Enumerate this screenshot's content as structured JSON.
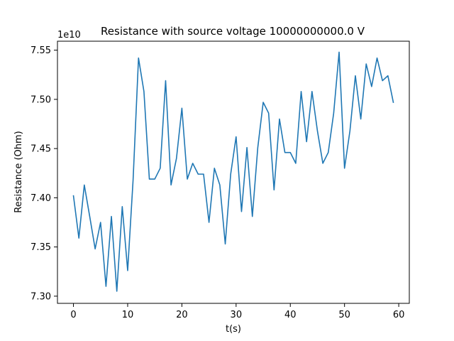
{
  "chart_data": {
    "type": "line",
    "title": "Resistance with source voltage 10000000000.0 V",
    "xlabel": "t(s)",
    "ylabel": "Resistance (Ohm)",
    "y_offset_label": "1e10",
    "xlim": [
      -2.95,
      61.95
    ],
    "ylim": [
      7.2927,
      7.5591
    ],
    "x_ticks": [
      0,
      10,
      20,
      30,
      40,
      50,
      60
    ],
    "x_tick_labels": [
      "0",
      "10",
      "20",
      "30",
      "40",
      "50",
      "60"
    ],
    "y_ticks": [
      7.3,
      7.35,
      7.4,
      7.45,
      7.5,
      7.55
    ],
    "y_tick_labels": [
      "7.30",
      "7.35",
      "7.40",
      "7.45",
      "7.50",
      "7.55"
    ],
    "grid": false,
    "line_color": "#1f77b4",
    "series": [
      {
        "x": [
          0,
          1,
          2,
          3,
          4,
          5,
          6,
          7,
          8,
          9,
          10,
          11,
          12,
          13,
          14,
          15,
          16,
          17,
          18,
          19,
          20,
          21,
          22,
          23,
          24,
          25,
          26,
          27,
          28,
          29,
          30,
          31,
          32,
          33,
          34,
          35,
          36,
          37,
          38,
          39,
          40,
          41,
          42,
          43,
          44,
          45,
          46,
          47,
          48,
          49,
          50,
          51,
          52,
          53,
          54,
          55,
          56,
          57,
          58,
          59
        ],
        "values": [
          7.402,
          7.359,
          7.413,
          7.381,
          7.348,
          7.375,
          7.31,
          7.381,
          7.305,
          7.391,
          7.326,
          7.418,
          7.542,
          7.508,
          7.419,
          7.419,
          7.43,
          7.519,
          7.413,
          7.44,
          7.491,
          7.419,
          7.435,
          7.424,
          7.424,
          7.375,
          7.43,
          7.413,
          7.353,
          7.424,
          7.462,
          7.386,
          7.451,
          7.381,
          7.451,
          7.497,
          7.486,
          7.408,
          7.48,
          7.446,
          7.446,
          7.435,
          7.508,
          7.457,
          7.508,
          7.468,
          7.435,
          7.446,
          7.486,
          7.548,
          7.43,
          7.468,
          7.524,
          7.48,
          7.536,
          7.513,
          7.542,
          7.519,
          7.524,
          7.497
        ]
      }
    ]
  }
}
